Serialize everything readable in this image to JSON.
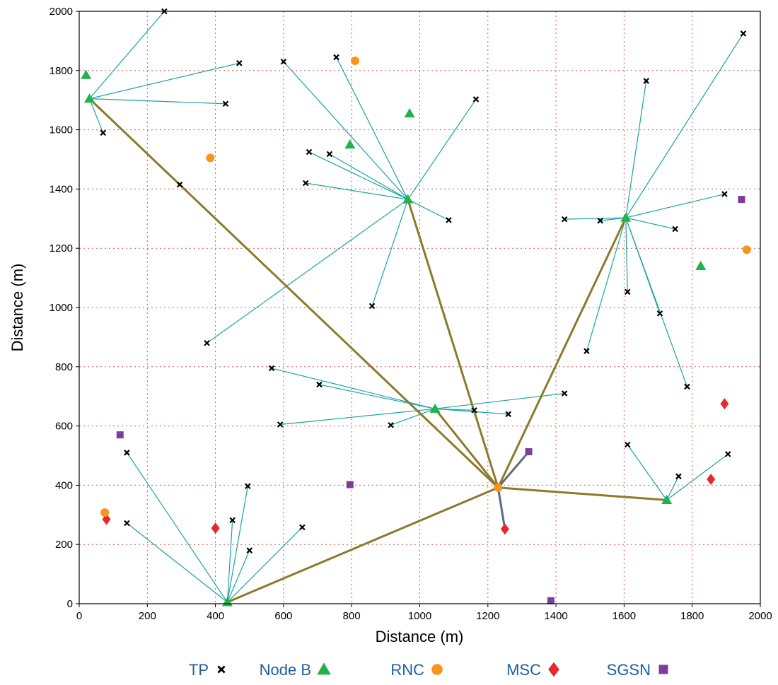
{
  "chart_data": {
    "type": "scatter",
    "title": "",
    "xlabel": "Distance (m)",
    "ylabel": "Distance (m)",
    "xlim": [
      0,
      2000
    ],
    "ylim": [
      0,
      2000
    ],
    "xticks": [
      "0",
      "200",
      "400",
      "600",
      "800",
      "1000",
      "1200",
      "1400",
      "1600",
      "1800",
      "2000"
    ],
    "yticks": [
      "0",
      "200",
      "400",
      "600",
      "800",
      "1000",
      "1200",
      "1400",
      "1600",
      "1800",
      "2000"
    ],
    "grid": true,
    "legend_position": "bottom",
    "series": [
      {
        "name": "TP",
        "marker": "x",
        "color": "#000000",
        "points": [
          [
            250,
            2000
          ],
          [
            470,
            1825
          ],
          [
            430,
            1688
          ],
          [
            70,
            1590
          ],
          [
            295,
            1415
          ],
          [
            600,
            1830
          ],
          [
            755,
            1845
          ],
          [
            1165,
            1703
          ],
          [
            675,
            1525
          ],
          [
            735,
            1518
          ],
          [
            665,
            1420
          ],
          [
            1085,
            1295
          ],
          [
            860,
            1005
          ],
          [
            375,
            880
          ],
          [
            1950,
            1925
          ],
          [
            1665,
            1765
          ],
          [
            1895,
            1383
          ],
          [
            1425,
            1298
          ],
          [
            1530,
            1293
          ],
          [
            1750,
            1265
          ],
          [
            1610,
            1053
          ],
          [
            1705,
            980
          ],
          [
            1490,
            853
          ],
          [
            1785,
            733
          ],
          [
            565,
            795
          ],
          [
            705,
            740
          ],
          [
            590,
            605
          ],
          [
            915,
            603
          ],
          [
            1160,
            653
          ],
          [
            1260,
            640
          ],
          [
            1425,
            710
          ],
          [
            140,
            510
          ],
          [
            140,
            272
          ],
          [
            450,
            282
          ],
          [
            495,
            397
          ],
          [
            500,
            180
          ],
          [
            655,
            258
          ],
          [
            1610,
            537
          ],
          [
            1760,
            430
          ],
          [
            1905,
            505
          ]
        ]
      },
      {
        "name": "Node B",
        "marker": "triangle",
        "color": "#22b24c",
        "points": [
          [
            20,
            1785
          ],
          [
            30,
            1705
          ],
          [
            795,
            1550
          ],
          [
            970,
            1655
          ],
          [
            965,
            1365
          ],
          [
            1605,
            1303
          ],
          [
            1825,
            1140
          ],
          [
            1045,
            658
          ],
          [
            1725,
            350
          ],
          [
            435,
            5
          ]
        ]
      },
      {
        "name": "RNC",
        "marker": "circle",
        "color": "#f7941d",
        "points": [
          [
            810,
            1833
          ],
          [
            385,
            1505
          ],
          [
            1960,
            1195
          ],
          [
            75,
            308
          ],
          [
            1230,
            392
          ]
        ]
      },
      {
        "name": "MSC",
        "marker": "diamond",
        "color": "#e8262b",
        "points": [
          [
            1895,
            675
          ],
          [
            1855,
            420
          ],
          [
            80,
            285
          ],
          [
            400,
            255
          ],
          [
            1250,
            252
          ]
        ]
      },
      {
        "name": "SGSN",
        "marker": "square",
        "color": "#7b3f98",
        "points": [
          [
            1945,
            1365
          ],
          [
            120,
            570
          ],
          [
            795,
            402
          ],
          [
            1320,
            513
          ],
          [
            1385,
            10
          ]
        ]
      }
    ],
    "access_links": [
      [
        [
          30,
          1705
        ],
        [
          250,
          2000
        ]
      ],
      [
        [
          30,
          1705
        ],
        [
          470,
          1825
        ]
      ],
      [
        [
          30,
          1705
        ],
        [
          430,
          1688
        ]
      ],
      [
        [
          30,
          1705
        ],
        [
          70,
          1590
        ]
      ],
      [
        [
          30,
          1705
        ],
        [
          295,
          1415
        ]
      ],
      [
        [
          965,
          1365
        ],
        [
          600,
          1830
        ]
      ],
      [
        [
          965,
          1365
        ],
        [
          755,
          1845
        ]
      ],
      [
        [
          965,
          1365
        ],
        [
          1165,
          1703
        ]
      ],
      [
        [
          965,
          1365
        ],
        [
          675,
          1525
        ]
      ],
      [
        [
          965,
          1365
        ],
        [
          735,
          1518
        ]
      ],
      [
        [
          965,
          1365
        ],
        [
          665,
          1420
        ]
      ],
      [
        [
          965,
          1365
        ],
        [
          1085,
          1295
        ]
      ],
      [
        [
          965,
          1365
        ],
        [
          860,
          1005
        ]
      ],
      [
        [
          965,
          1365
        ],
        [
          375,
          880
        ]
      ],
      [
        [
          1605,
          1303
        ],
        [
          1950,
          1925
        ]
      ],
      [
        [
          1605,
          1303
        ],
        [
          1665,
          1765
        ]
      ],
      [
        [
          1605,
          1303
        ],
        [
          1895,
          1383
        ]
      ],
      [
        [
          1605,
          1303
        ],
        [
          1425,
          1298
        ]
      ],
      [
        [
          1605,
          1303
        ],
        [
          1530,
          1293
        ]
      ],
      [
        [
          1605,
          1303
        ],
        [
          1750,
          1265
        ]
      ],
      [
        [
          1605,
          1303
        ],
        [
          1610,
          1053
        ]
      ],
      [
        [
          1605,
          1303
        ],
        [
          1705,
          980
        ]
      ],
      [
        [
          1605,
          1303
        ],
        [
          1490,
          853
        ]
      ],
      [
        [
          1605,
          1303
        ],
        [
          1785,
          733
        ]
      ],
      [
        [
          1045,
          658
        ],
        [
          565,
          795
        ]
      ],
      [
        [
          1045,
          658
        ],
        [
          705,
          740
        ]
      ],
      [
        [
          1045,
          658
        ],
        [
          590,
          605
        ]
      ],
      [
        [
          1045,
          658
        ],
        [
          915,
          603
        ]
      ],
      [
        [
          1045,
          658
        ],
        [
          1160,
          653
        ]
      ],
      [
        [
          1045,
          658
        ],
        [
          1260,
          640
        ]
      ],
      [
        [
          1045,
          658
        ],
        [
          1425,
          710
        ]
      ],
      [
        [
          435,
          5
        ],
        [
          140,
          510
        ]
      ],
      [
        [
          435,
          5
        ],
        [
          140,
          272
        ]
      ],
      [
        [
          435,
          5
        ],
        [
          450,
          282
        ]
      ],
      [
        [
          435,
          5
        ],
        [
          495,
          397
        ]
      ],
      [
        [
          435,
          5
        ],
        [
          500,
          180
        ]
      ],
      [
        [
          435,
          5
        ],
        [
          655,
          258
        ]
      ],
      [
        [
          1725,
          350
        ],
        [
          1610,
          537
        ]
      ],
      [
        [
          1725,
          350
        ],
        [
          1760,
          430
        ]
      ],
      [
        [
          1725,
          350
        ],
        [
          1905,
          505
        ]
      ]
    ],
    "backhaul_links": [
      [
        [
          1230,
          392
        ],
        [
          30,
          1705
        ]
      ],
      [
        [
          1230,
          392
        ],
        [
          965,
          1365
        ]
      ],
      [
        [
          1230,
          392
        ],
        [
          1605,
          1303
        ]
      ],
      [
        [
          1230,
          392
        ],
        [
          1725,
          350
        ]
      ],
      [
        [
          1230,
          392
        ],
        [
          435,
          5
        ]
      ],
      [
        [
          1230,
          392
        ],
        [
          1045,
          658
        ]
      ]
    ],
    "core_links": [
      [
        [
          1230,
          392
        ],
        [
          1320,
          513
        ]
      ],
      [
        [
          1230,
          392
        ],
        [
          1250,
          252
        ]
      ]
    ],
    "link_colors": {
      "access": "#1aa3a3",
      "backhaul": "#8b7a2a",
      "core": "#5f6b80"
    }
  }
}
